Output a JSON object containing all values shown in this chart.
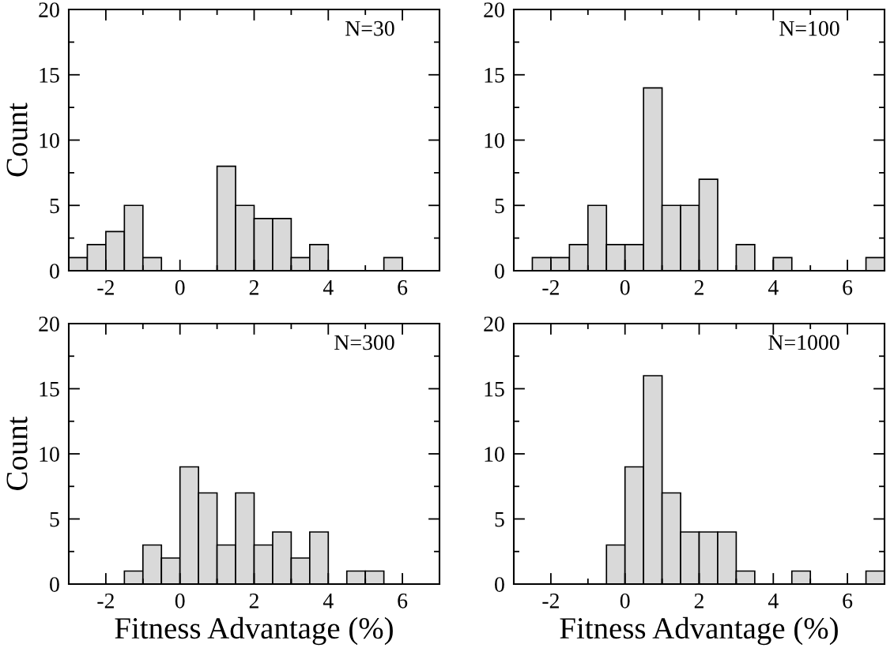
{
  "chart_data": [
    {
      "type": "histogram",
      "ylabel": "Count",
      "annotations": [
        "N=30"
      ],
      "bins": [
        -3,
        -2.5,
        -2,
        -1.5,
        -1,
        -0.5,
        0,
        0.5,
        1,
        1.5,
        2,
        2.5,
        3,
        3.5,
        4,
        4.5,
        5,
        5.5,
        6,
        6.5,
        7
      ],
      "values": [
        1,
        2,
        3,
        5,
        1,
        null,
        null,
        null,
        8,
        5,
        4,
        4,
        1,
        2,
        null,
        null,
        null,
        1,
        null,
        null
      ],
      "color": "#d9d9d9",
      "xlim": [
        -3,
        7
      ],
      "xticks": [
        -2,
        {
          "value": -1,
          "label": null
        },
        0,
        {
          "value": 1,
          "label": null
        },
        2,
        {
          "value": 3,
          "label": null
        },
        4,
        {
          "value": 5,
          "label": null
        },
        6
      ],
      "ylim": [
        0,
        20
      ],
      "yticks": [
        0,
        {
          "value": 2.5,
          "label": null
        },
        5,
        {
          "value": 7.5,
          "label": null
        },
        10,
        {
          "value": 12.5,
          "label": null
        },
        15,
        {
          "value": 17.5,
          "label": null
        },
        20
      ]
    },
    {
      "type": "histogram",
      "annotations": [
        "N=100"
      ],
      "bins": [
        -3,
        -2.5,
        -2,
        -1.5,
        -1,
        -0.5,
        0,
        0.5,
        1,
        1.5,
        2,
        2.5,
        3,
        3.5,
        4,
        4.5,
        5,
        5.5,
        6,
        6.5,
        7
      ],
      "values": [
        null,
        1,
        1,
        2,
        5,
        2,
        2,
        14,
        5,
        5,
        7,
        null,
        2,
        null,
        1,
        null,
        null,
        null,
        null,
        1
      ],
      "color": "#d9d9d9",
      "xlim": [
        -3,
        7
      ],
      "xticks": [
        -2,
        {
          "value": -1,
          "label": null
        },
        0,
        {
          "value": 1,
          "label": null
        },
        2,
        {
          "value": 3,
          "label": null
        },
        4,
        {
          "value": 5,
          "label": null
        },
        6
      ],
      "ylim": [
        0,
        20
      ],
      "yticks": [
        0,
        {
          "value": 2.5,
          "label": null
        },
        5,
        {
          "value": 7.5,
          "label": null
        },
        10,
        {
          "value": 12.5,
          "label": null
        },
        15,
        {
          "value": 17.5,
          "label": null
        },
        20
      ]
    },
    {
      "type": "histogram",
      "xlabel": "Fitness Advantage (%)",
      "ylabel": "Count",
      "annotations": [
        "N=300"
      ],
      "bins": [
        -3,
        -2.5,
        -2,
        -1.5,
        -1,
        -0.5,
        0,
        0.5,
        1,
        1.5,
        2,
        2.5,
        3,
        3.5,
        4,
        4.5,
        5,
        5.5,
        6,
        6.5,
        7
      ],
      "values": [
        null,
        null,
        null,
        1,
        3,
        2,
        9,
        7,
        3,
        7,
        3,
        4,
        2,
        4,
        null,
        1,
        1,
        null,
        null,
        null
      ],
      "color": "#d9d9d9",
      "xlim": [
        -3,
        7
      ],
      "xticks": [
        -2,
        {
          "value": -1,
          "label": null
        },
        0,
        {
          "value": 1,
          "label": null
        },
        2,
        {
          "value": 3,
          "label": null
        },
        4,
        {
          "value": 5,
          "label": null
        },
        6
      ],
      "ylim": [
        0,
        20
      ],
      "yticks": [
        0,
        {
          "value": 2.5,
          "label": null
        },
        5,
        {
          "value": 7.5,
          "label": null
        },
        10,
        {
          "value": 12.5,
          "label": null
        },
        15,
        {
          "value": 17.5,
          "label": null
        },
        20
      ]
    },
    {
      "type": "histogram",
      "xlabel": "Fitness Advantage (%)",
      "annotations": [
        "N=1000"
      ],
      "bins": [
        -3,
        -2.5,
        -2,
        -1.5,
        -1,
        -0.5,
        0,
        0.5,
        1,
        1.5,
        2,
        2.5,
        3,
        3.5,
        4,
        4.5,
        5,
        5.5,
        6,
        6.5,
        7
      ],
      "values": [
        null,
        null,
        null,
        null,
        null,
        3,
        9,
        16,
        7,
        4,
        4,
        4,
        1,
        null,
        null,
        1,
        null,
        null,
        null,
        1
      ],
      "color": "#d9d9d9",
      "xlim": [
        -3,
        7
      ],
      "xticks": [
        -2,
        {
          "value": -1,
          "label": null
        },
        0,
        {
          "value": 1,
          "label": null
        },
        2,
        {
          "value": 3,
          "label": null
        },
        4,
        {
          "value": 5,
          "label": null
        },
        6
      ],
      "ylim": [
        0,
        20
      ],
      "yticks": [
        0,
        {
          "value": 2.5,
          "label": null
        },
        5,
        {
          "value": 7.5,
          "label": null
        },
        10,
        {
          "value": 12.5,
          "label": null
        },
        15,
        {
          "value": 17.5,
          "label": null
        },
        20
      ]
    }
  ]
}
